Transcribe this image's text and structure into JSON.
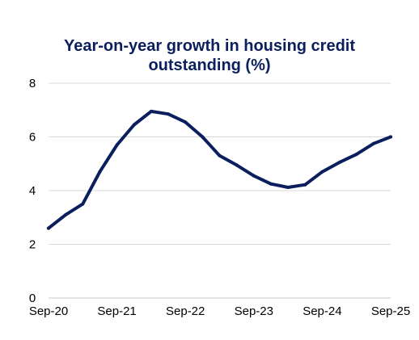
{
  "chart_data": {
    "type": "line",
    "title": "Year-on-year growth in housing credit outstanding (%)",
    "title_lines": [
      "Year-on-year growth in housing credit",
      "outstanding (%)"
    ],
    "xlabel": "",
    "ylabel": "",
    "x_tick_labels": [
      "Sep-20",
      "Sep-21",
      "Sep-22",
      "Sep-23",
      "Sep-24",
      "Sep-25"
    ],
    "y_ticks": [
      0,
      2,
      4,
      6,
      8
    ],
    "ylim": [
      0,
      8
    ],
    "grid": true,
    "legend": "none",
    "series": [
      {
        "color": "#0b1f5e",
        "x": [
          "2020-09",
          "2020-12",
          "2021-03",
          "2021-06",
          "2021-09",
          "2021-12",
          "2022-03",
          "2022-06",
          "2022-09",
          "2022-12",
          "2023-03",
          "2023-06",
          "2023-09",
          "2023-12",
          "2024-03",
          "2024-06",
          "2024-09",
          "2024-12",
          "2025-03",
          "2025-06",
          "2025-09"
        ],
        "values": [
          2.6,
          3.1,
          3.5,
          4.7,
          5.7,
          6.45,
          6.95,
          6.85,
          6.55,
          6.0,
          5.3,
          4.95,
          4.55,
          4.25,
          4.12,
          4.22,
          4.7,
          5.05,
          5.35,
          5.75,
          6.0
        ]
      }
    ]
  }
}
